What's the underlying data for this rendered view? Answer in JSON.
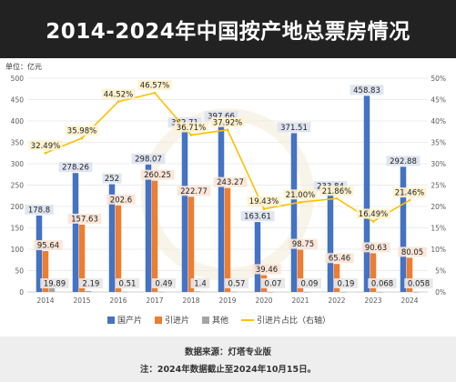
{
  "page": {
    "title": "2014-2024年中国按产地总票房情况",
    "source": "数据来源：灯塔专业版",
    "note": "注：2024年数据截止至2024年10月15日。"
  },
  "chart_data": {
    "type": "bar",
    "unit_label": "单位：亿元",
    "categories": [
      "2014",
      "2015",
      "2016",
      "2017",
      "2018",
      "2019",
      "2020",
      "2021",
      "2022",
      "2023",
      "2024"
    ],
    "series": [
      {
        "name": "国产片",
        "kind": "bar",
        "axis": "left",
        "color": "#4472C4",
        "values": [
          178.8,
          278.26,
          252,
          298.07,
          382.71,
          397.66,
          163.61,
          371.51,
          233.84,
          458.83,
          292.88
        ],
        "labels": [
          "178.8",
          "278.26",
          "252",
          "298.07",
          "382.71",
          "397.66",
          "163.61",
          "371.51",
          "233.84",
          "458.83",
          "292.88"
        ]
      },
      {
        "name": "引进片",
        "kind": "bar",
        "axis": "left",
        "color": "#ED7D31",
        "values": [
          95.64,
          157.63,
          202.6,
          260.25,
          222.77,
          243.27,
          39.46,
          98.75,
          65.46,
          90.63,
          80.05
        ],
        "labels": [
          "95.64",
          "157.63",
          "202.6",
          "260.25",
          "222.77",
          "243.27",
          "39.46",
          "98.75",
          "65.46",
          "90.63",
          "80.05"
        ]
      },
      {
        "name": "其他",
        "kind": "bar",
        "axis": "left",
        "color": "#A5A5A5",
        "values": [
          19.89,
          2.19,
          0.51,
          0.49,
          1.4,
          0.57,
          0.07,
          0.09,
          0.19,
          0.068,
          0.058
        ],
        "labels": [
          "19.89",
          "2.19",
          "0.51",
          "0.49",
          "1.4",
          "0.57",
          "0.07",
          "0.09",
          "0.19",
          "0.068",
          "0.058"
        ]
      },
      {
        "name": "引进片占比（右轴）",
        "kind": "line",
        "axis": "right",
        "color": "#FFC000",
        "values": [
          32.49,
          35.98,
          44.52,
          46.57,
          36.71,
          37.92,
          19.43,
          21.0,
          21.86,
          16.49,
          21.46
        ],
        "labels": [
          "32.49%",
          "35.98%",
          "44.52%",
          "46.57%",
          "36.71%",
          "37.92%",
          "19.43%",
          "21.00%",
          "21.86%",
          "16.49%",
          "21.46%"
        ]
      }
    ],
    "y_left": {
      "min": 0,
      "max": 500,
      "step": 50
    },
    "y_right": {
      "min": 0,
      "max": 50,
      "step": 5,
      "suffix": "%"
    },
    "grid": true,
    "legend_position": "bottom"
  },
  "colors": {
    "title_bg": "#222222",
    "footer_bg": "#eeeeee",
    "label_bg": "#DCE3F0"
  }
}
